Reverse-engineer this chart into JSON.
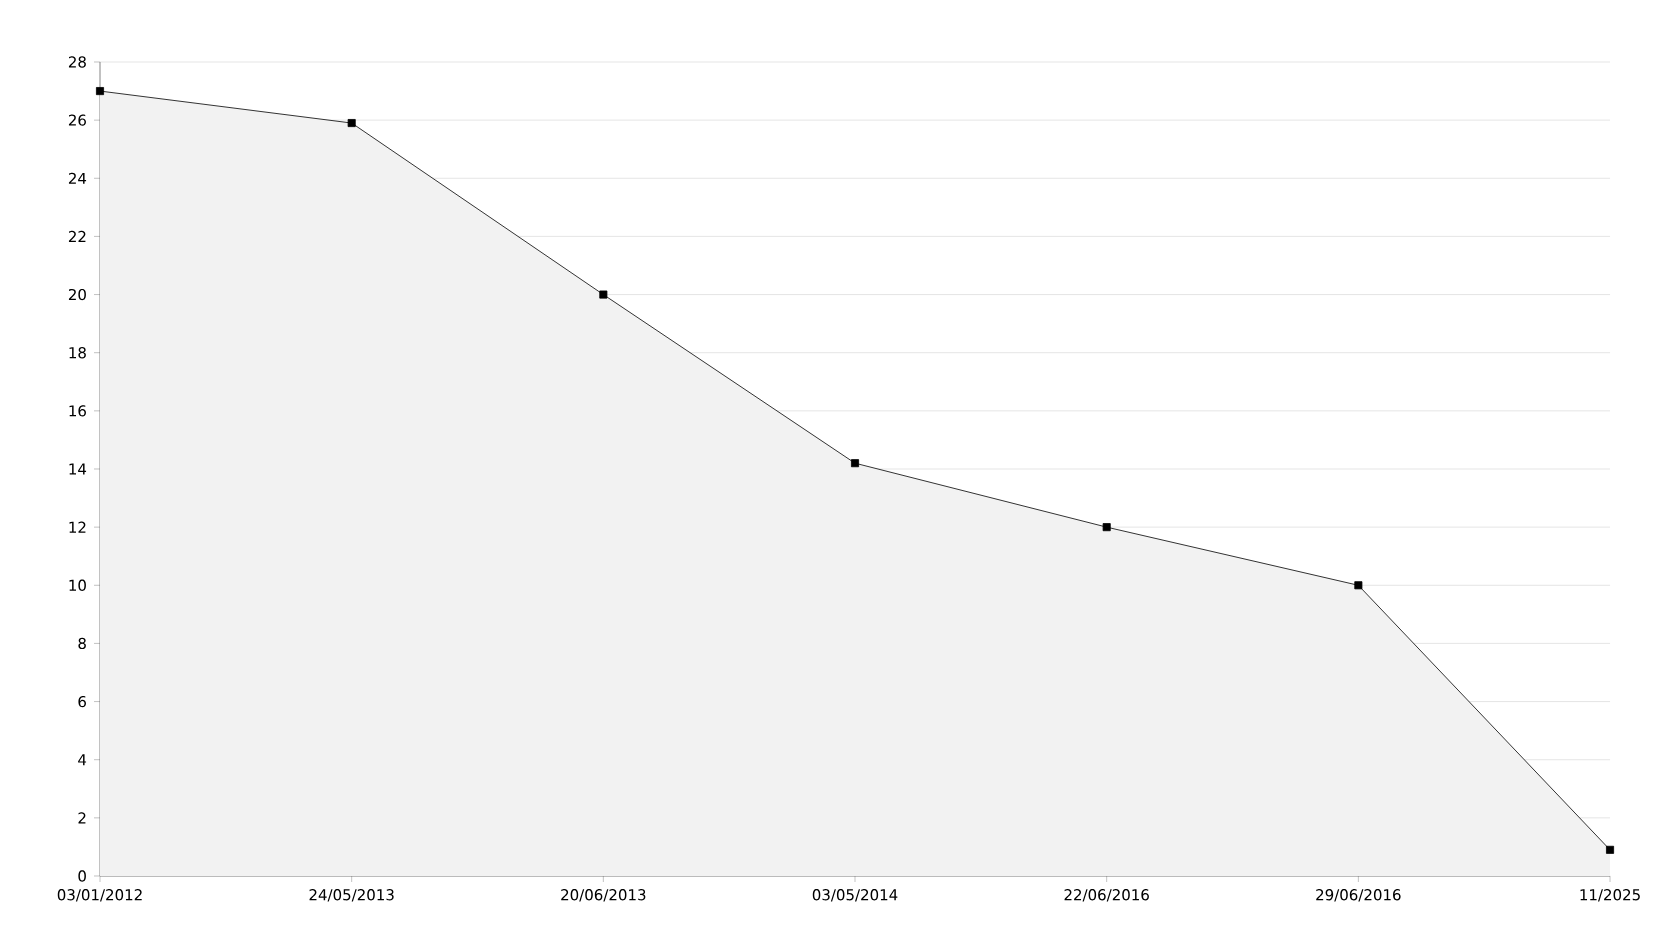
{
  "chart_data": {
    "type": "area",
    "categories": [
      "03/01/2012",
      "24/05/2013",
      "20/06/2013",
      "03/05/2014",
      "22/06/2016",
      "29/06/2016",
      "11/2025"
    ],
    "series": [
      {
        "color": "#000000",
        "values": [
          27,
          25.9,
          20,
          14.2,
          12,
          10,
          0.9
        ]
      }
    ],
    "ylim": [
      0,
      28
    ],
    "yticks": [
      0,
      2,
      4,
      6,
      8,
      10,
      12,
      14,
      16,
      18,
      20,
      22,
      24,
      26,
      28
    ],
    "grid": "y",
    "marker": "square",
    "line_style": "solid"
  }
}
